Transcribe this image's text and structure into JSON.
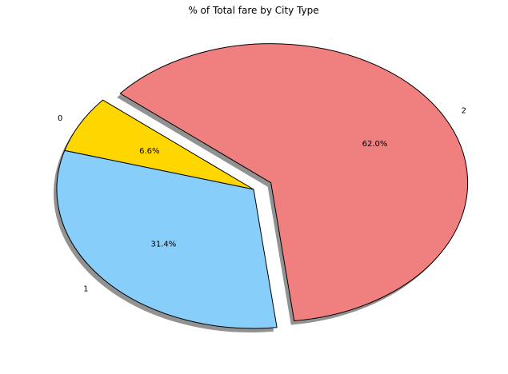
{
  "chart_data": {
    "type": "pie",
    "title": "% of Total fare by City Type",
    "categories": [
      "0",
      "1",
      "2"
    ],
    "values": [
      6.6,
      31.4,
      62.0
    ],
    "autopct_labels": [
      "6.6%",
      "31.4%",
      "62.0%"
    ],
    "colors": [
      "#ffd700",
      "#87cefa",
      "#f08080"
    ],
    "explode": [
      0,
      0,
      0.1
    ],
    "shadow": true,
    "legend": "none"
  }
}
